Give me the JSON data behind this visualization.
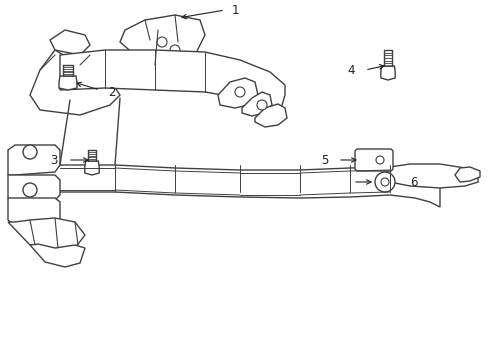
{
  "background_color": "#ffffff",
  "line_color": "#404040",
  "line_width": 1.0,
  "callout_fontsize": 8.5,
  "fig_width": 4.89,
  "fig_height": 3.6,
  "dpi": 100
}
